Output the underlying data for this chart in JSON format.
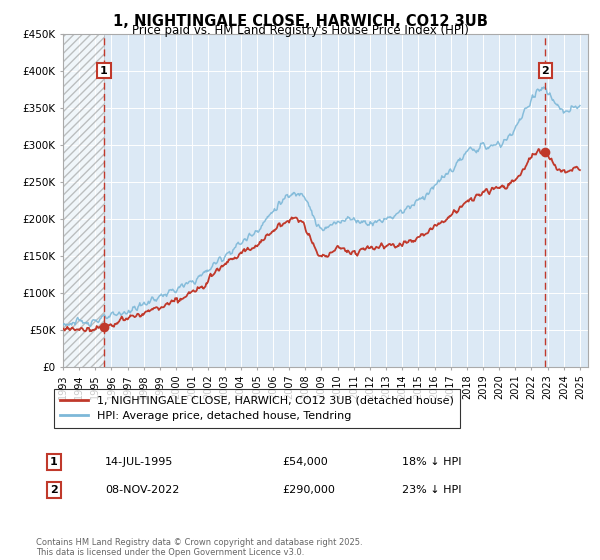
{
  "title": "1, NIGHTINGALE CLOSE, HARWICH, CO12 3UB",
  "subtitle": "Price paid vs. HM Land Registry's House Price Index (HPI)",
  "ylim": [
    0,
    450000
  ],
  "yticks": [
    0,
    50000,
    100000,
    150000,
    200000,
    250000,
    300000,
    350000,
    400000,
    450000
  ],
  "ytick_labels": [
    "£0",
    "£50K",
    "£100K",
    "£150K",
    "£200K",
    "£250K",
    "£300K",
    "£350K",
    "£400K",
    "£450K"
  ],
  "xlim_start": 1993.0,
  "xlim_end": 2025.5,
  "sale1_date": 1995.537,
  "sale1_price": 54000,
  "sale2_date": 2022.856,
  "sale2_price": 290000,
  "hpi_color": "#7db8d8",
  "price_color": "#c0392b",
  "plot_bg": "#dce9f5",
  "legend_label1": "1, NIGHTINGALE CLOSE, HARWICH, CO12 3UB (detached house)",
  "legend_label2": "HPI: Average price, detached house, Tendring",
  "annotation1_num": "1",
  "annotation1_date": "14-JUL-1995",
  "annotation1_price": "£54,000",
  "annotation1_hpi": "18% ↓ HPI",
  "annotation2_num": "2",
  "annotation2_date": "08-NOV-2022",
  "annotation2_price": "£290,000",
  "annotation2_hpi": "23% ↓ HPI",
  "copyright": "Contains HM Land Registry data © Crown copyright and database right 2025.\nThis data is licensed under the Open Government Licence v3.0."
}
